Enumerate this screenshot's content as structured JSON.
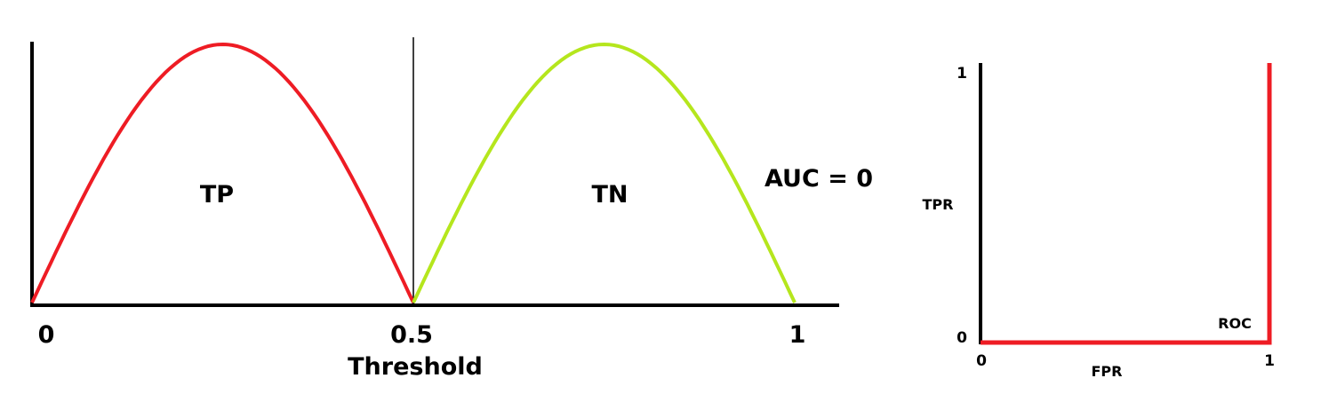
{
  "chart_data": [
    {
      "type": "line",
      "xlabel": "Threshold",
      "x_ticks": [
        "0",
        "0.5",
        "1"
      ],
      "xlim": [
        0,
        1
      ],
      "series": [
        {
          "name": "TP",
          "color": "#ee1c24",
          "x": [
            0,
            0.0625,
            0.125,
            0.1875,
            0.25,
            0.3125,
            0.375,
            0.4375,
            0.5
          ],
          "y": [
            0,
            0.38,
            0.71,
            0.92,
            1.0,
            0.92,
            0.71,
            0.38,
            0
          ]
        },
        {
          "name": "TN",
          "color": "#b5e61d",
          "x": [
            0.5,
            0.5625,
            0.625,
            0.6875,
            0.75,
            0.8125,
            0.875,
            0.9375,
            1.0
          ],
          "y": [
            0,
            0.38,
            0.71,
            0.92,
            1.0,
            0.92,
            0.71,
            0.38,
            0
          ]
        }
      ],
      "threshold_line": 0.5,
      "annotation": "AUC = 0"
    },
    {
      "type": "line",
      "xlabel": "FPR",
      "ylabel": "TPR",
      "x_ticks": [
        "0",
        "1"
      ],
      "y_ticks": [
        "0",
        "1"
      ],
      "xlim": [
        0,
        1
      ],
      "ylim": [
        0,
        1
      ],
      "series": [
        {
          "name": "ROC",
          "color": "#ee1c24",
          "x": [
            0,
            1,
            1
          ],
          "y": [
            0,
            0,
            1
          ]
        }
      ]
    }
  ]
}
